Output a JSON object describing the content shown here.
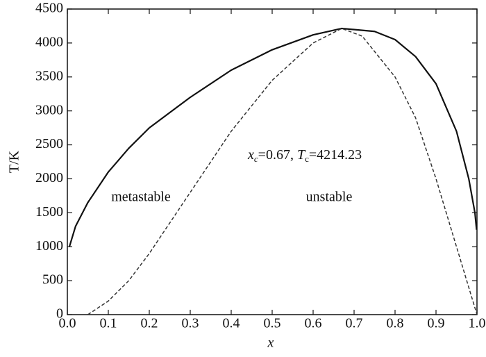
{
  "chart_data": {
    "type": "line",
    "x_label": "x",
    "y_label": "T/K",
    "annotations": [
      {
        "text": "metastable"
      },
      {
        "text": "unstable"
      },
      {
        "parts": [
          "x",
          "c",
          "=0.67, ",
          "T",
          "c",
          "=4214.23"
        ]
      }
    ],
    "xlim": [
      0,
      1
    ],
    "ylim": [
      0,
      4500
    ],
    "xticks": [
      {
        "value": 0,
        "label": "0.0"
      },
      0.1,
      0.2,
      0.3,
      0.4,
      0.5,
      0.6,
      0.7,
      0.8,
      0.9,
      {
        "value": 1,
        "label": "1.0"
      }
    ],
    "yticks": [
      0,
      500,
      1000,
      1500,
      2000,
      2500,
      3000,
      3500,
      4000,
      4500
    ],
    "series": [
      {
        "color": "#111111",
        "dash": false,
        "x": [
          0.005,
          0.02,
          0.05,
          0.1,
          0.15,
          0.2,
          0.3,
          0.4,
          0.5,
          0.6,
          0.67,
          0.75,
          0.8,
          0.85,
          0.9,
          0.95,
          0.98,
          0.995,
          0.999
        ],
        "values": [
          1000,
          1300,
          1650,
          2100,
          2450,
          2750,
          3200,
          3600,
          3900,
          4120,
          4214,
          4170,
          4050,
          3800,
          3400,
          2700,
          2000,
          1500,
          1250
        ]
      },
      {
        "color": "#333333",
        "dash": true,
        "x": [
          0.05,
          0.1,
          0.15,
          0.2,
          0.3,
          0.4,
          0.5,
          0.6,
          0.67,
          0.72,
          0.8,
          0.85,
          0.9,
          0.95,
          0.98,
          1
        ],
        "values": [
          0,
          200,
          500,
          900,
          1800,
          2700,
          3450,
          4000,
          4214,
          4100,
          3500,
          2900,
          2000,
          1000,
          400,
          0
        ]
      }
    ]
  }
}
